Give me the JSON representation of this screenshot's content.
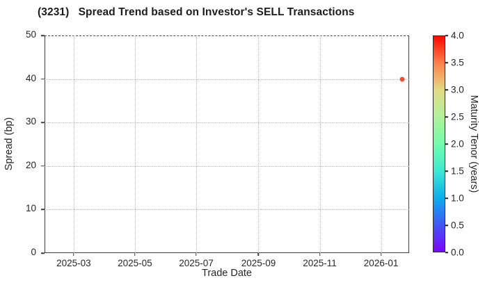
{
  "chart_data": {
    "type": "scatter",
    "title": "(3231)   Spread Trend based on Investor's SELL Transactions",
    "xlabel": "Trade Date",
    "ylabel": "Spread (bp)",
    "xlim": [
      "2025-01-31",
      "2026-01-29"
    ],
    "ylim": [
      0,
      50
    ],
    "x_ticks": [
      "2025-03",
      "2025-05",
      "2025-07",
      "2025-09",
      "2025-11",
      "2026-01"
    ],
    "y_ticks": [
      0,
      10,
      20,
      30,
      40,
      50
    ],
    "grid": "dotted",
    "legend": false,
    "points": [
      {
        "trade_date": "2026-01-22",
        "spread_bp": 40,
        "maturity_tenor_years": 3.6,
        "color": "#f0512c"
      }
    ],
    "colorbar": {
      "label": "Maturity Tenor (years)",
      "min": 0.0,
      "max": 4.0,
      "ticks": [
        "0.0",
        "0.5",
        "1.0",
        "1.5",
        "2.0",
        "2.5",
        "3.0",
        "3.5",
        "4.0"
      ],
      "colormap": "rainbow",
      "gradient_bottom_to_top": [
        "#8004fb",
        "#4157f3",
        "#0caeec",
        "#3ee9d1",
        "#72fcab",
        "#b0f29a",
        "#e3da85",
        "#ff8049",
        "#ff0600"
      ]
    }
  }
}
